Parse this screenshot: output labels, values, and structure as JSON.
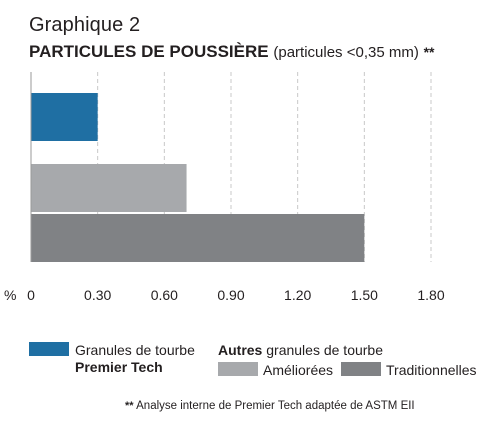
{
  "chart_data": {
    "type": "bar",
    "orientation": "horizontal",
    "subtitle": "Graphique 2",
    "title": "PARTICULES DE POUSSIÈRE",
    "title_note": "(particules <0,35 mm)",
    "title_marker": "**",
    "unit_label": "%",
    "xlim": [
      0,
      1.8
    ],
    "ticks": [
      "0",
      "0.30",
      "0.60",
      "0.90",
      "1.20",
      "1.50",
      "1.80"
    ],
    "tick_values": [
      0,
      0.3,
      0.6,
      0.9,
      1.2,
      1.5,
      1.8
    ],
    "grid": "vertical dashed",
    "bars": [
      {
        "series": "premier",
        "value": 0.3,
        "color": "#1f6fa3"
      },
      {
        "series": "ameliorees",
        "value": 0.7,
        "color": "#a7a9ac"
      },
      {
        "series": "traditionnelles",
        "value": 1.5,
        "color": "#808285"
      }
    ],
    "legend": {
      "premier_line1": "Granules de tourbe",
      "premier_line2": "Premier Tech",
      "others_bold": "Autres",
      "others_rest": " granules de tourbe",
      "ameliorees": "Améliorées",
      "traditionnelles": "Traditionnelles",
      "placement": "bottom"
    },
    "footnote_marker": "**",
    "footnote": "Analyse interne de Premier Tech adaptée de ASTM EII"
  }
}
